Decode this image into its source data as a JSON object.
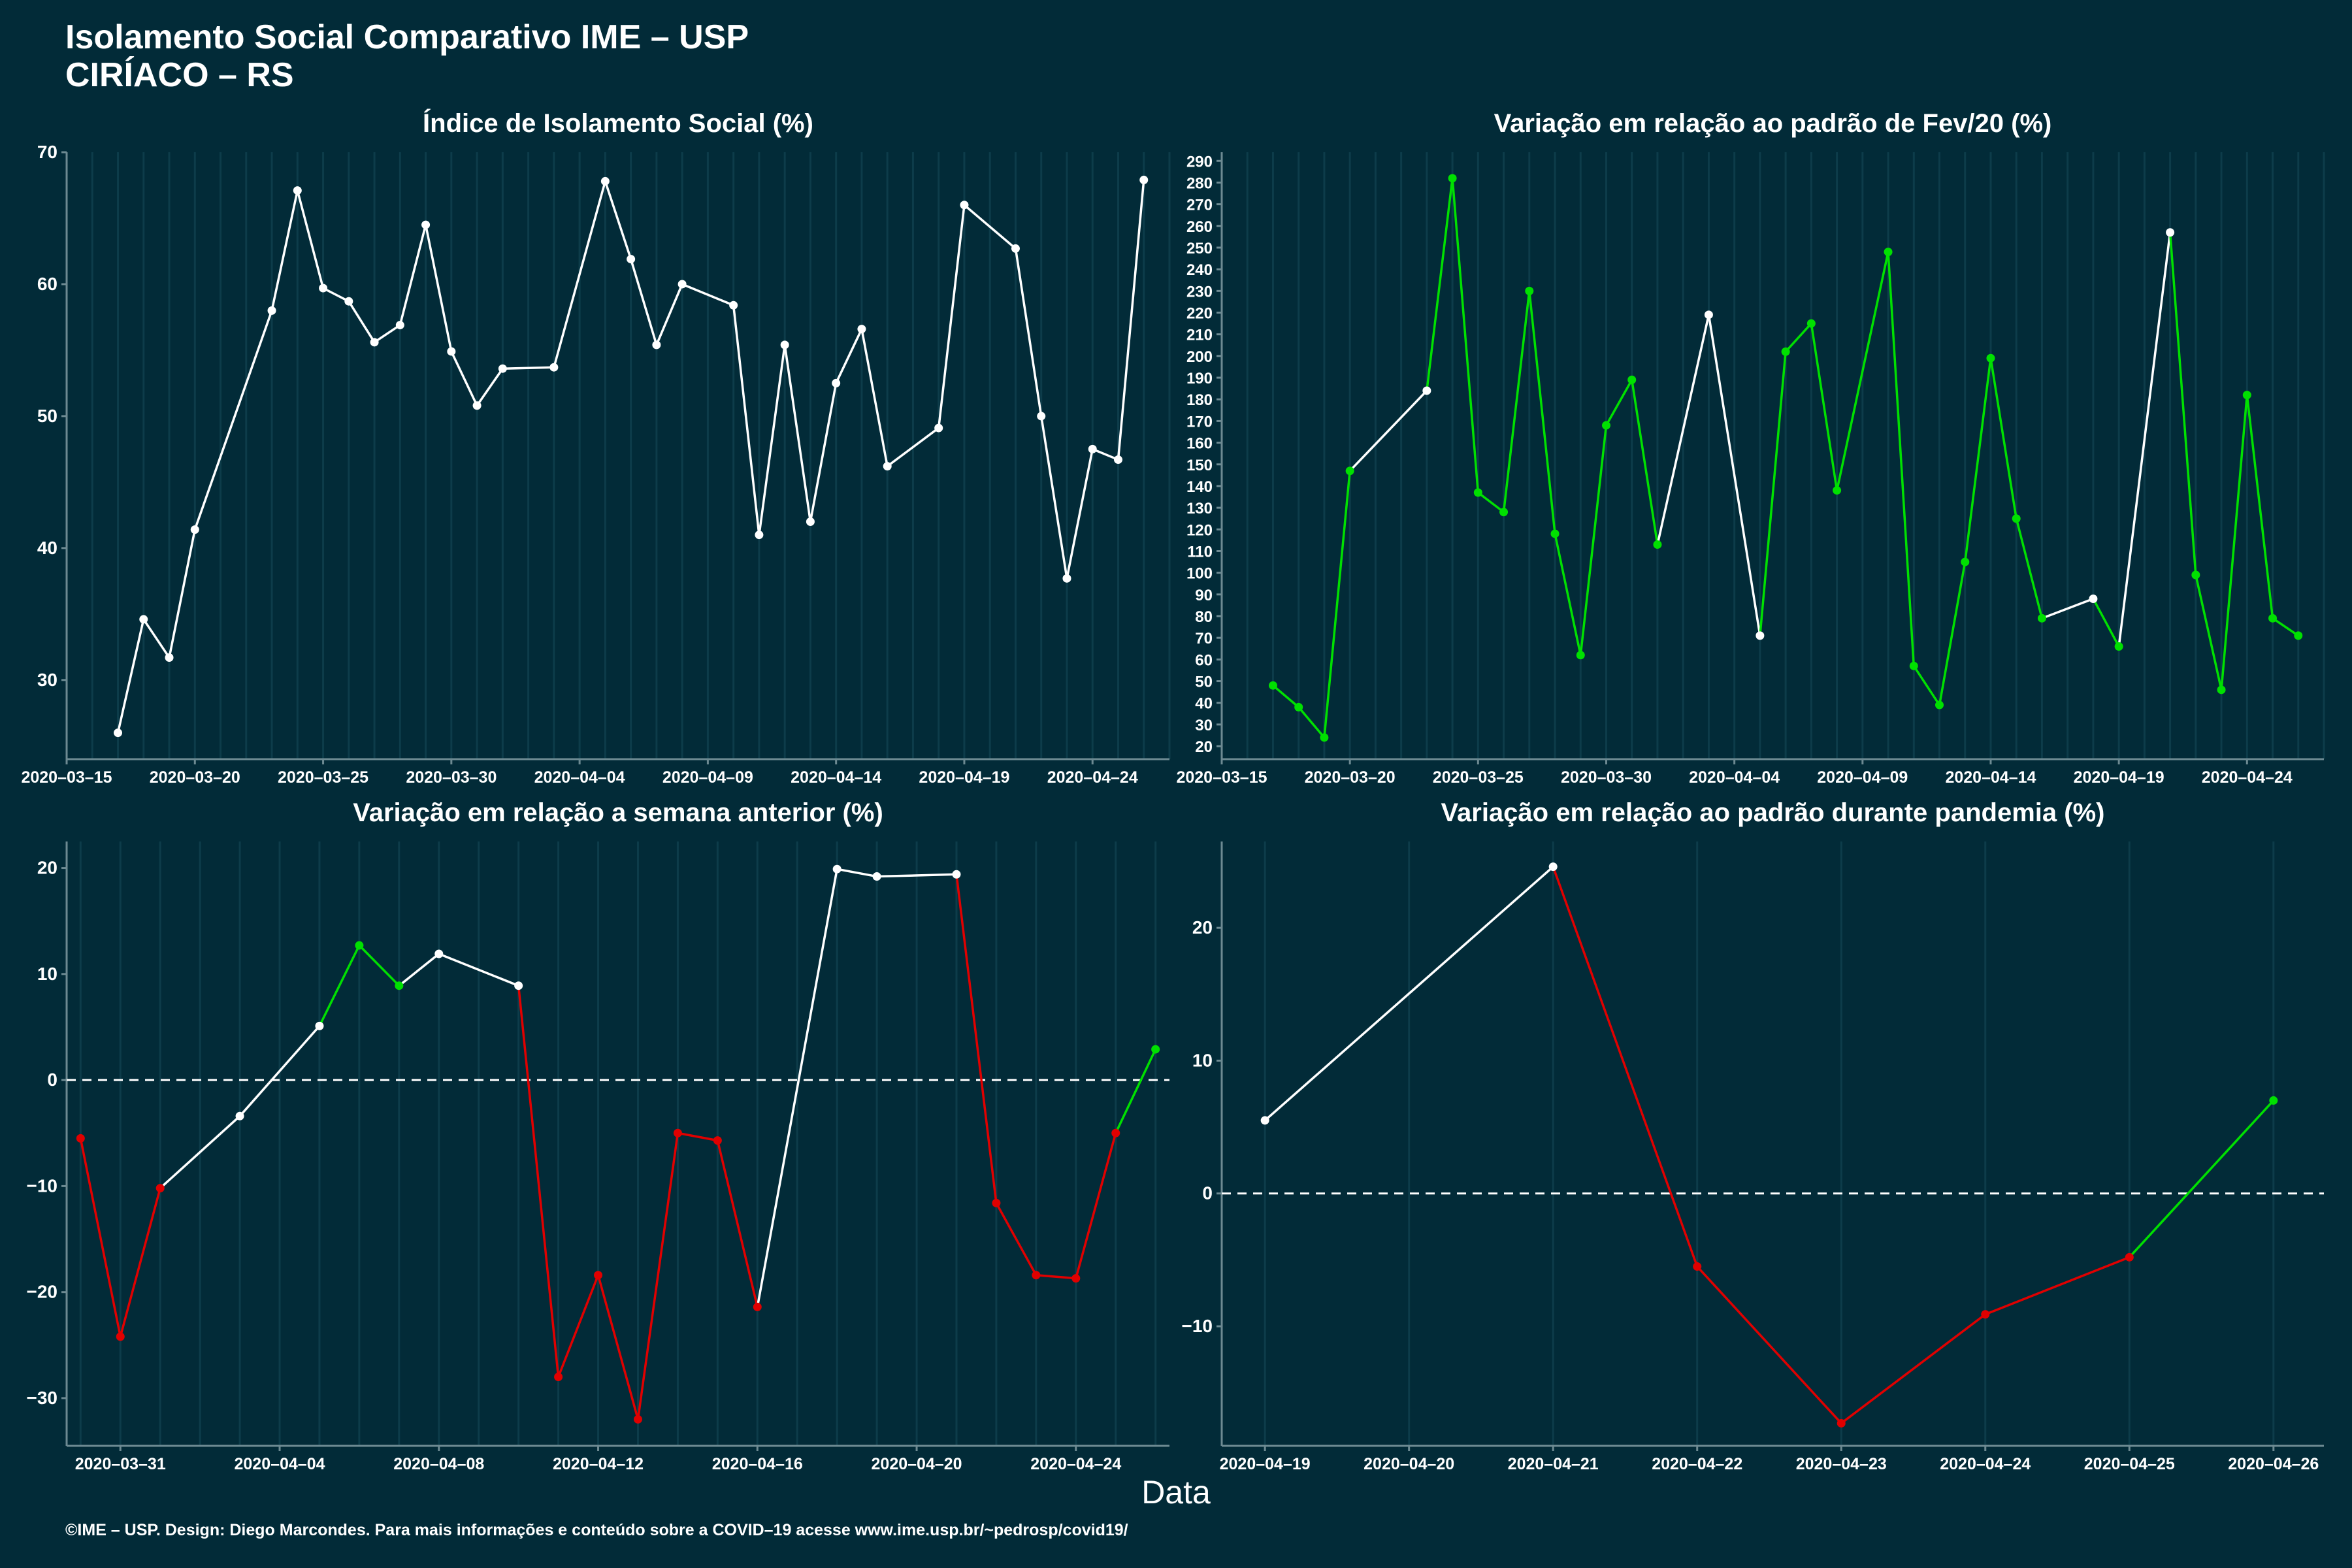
{
  "title_line1": "Isolamento Social Comparativo IME – USP",
  "title_line2": "CIRÍACO – RS",
  "x_axis_title": "Data",
  "footer": "©IME – USP. Design: Diego Marcondes. Para mais informações e conteúdo sobre a COVID–19 acesse www.ime.usp.br/~pedrosp/covid19/",
  "colors": {
    "background": "#022b38",
    "line": "#ffffff",
    "up": "#00e000",
    "down": "#e00000",
    "axis": "#6d8a92"
  },
  "chart_data": [
    {
      "type": "line",
      "title": "Índice de Isolamento Social (%)",
      "x": [
        "2020-03-17",
        "2020-03-18",
        "2020-03-19",
        "2020-03-20",
        "2020-03-23",
        "2020-03-24",
        "2020-03-25",
        "2020-03-26",
        "2020-03-27",
        "2020-03-28",
        "2020-03-29",
        "2020-03-30",
        "2020-03-31",
        "2020-04-01",
        "2020-04-03",
        "2020-04-05",
        "2020-04-06",
        "2020-04-07",
        "2020-04-08",
        "2020-04-10",
        "2020-04-11",
        "2020-04-12",
        "2020-04-13",
        "2020-04-14",
        "2020-04-15",
        "2020-04-16",
        "2020-04-18",
        "2020-04-19",
        "2020-04-21",
        "2020-04-22",
        "2020-04-23",
        "2020-04-24",
        "2020-04-25",
        "2020-04-26"
      ],
      "y": [
        26.0,
        34.6,
        31.7,
        41.4,
        58.0,
        67.1,
        59.7,
        58.7,
        55.6,
        56.9,
        64.5,
        54.9,
        50.8,
        53.6,
        53.7,
        67.8,
        61.9,
        55.4,
        60.0,
        58.4,
        41.0,
        55.4,
        42.0,
        52.5,
        56.6,
        46.2,
        49.1,
        66.0,
        62.7,
        50.0,
        37.7,
        47.5,
        46.7,
        67.9
      ],
      "colors": [
        "w",
        "w",
        "w",
        "w",
        "w",
        "w",
        "w",
        "w",
        "w",
        "w",
        "w",
        "w",
        "w",
        "w",
        "w",
        "w",
        "w",
        "w",
        "w",
        "w",
        "w",
        "w",
        "w",
        "w",
        "w",
        "w",
        "w",
        "w",
        "w",
        "w",
        "w",
        "w",
        "w"
      ],
      "ylim": [
        24,
        70
      ],
      "yticks": [
        30,
        40,
        50,
        60,
        70
      ],
      "xlim": [
        "2020-03-15",
        "2020-04-27"
      ],
      "xticks": [
        "2020-03-15",
        "2020-03-20",
        "2020-03-25",
        "2020-03-30",
        "2020-04-04",
        "2020-04-09",
        "2020-04-14",
        "2020-04-19",
        "2020-04-24"
      ],
      "zero_line": false
    },
    {
      "type": "line",
      "title": "Variação em relação ao padrão de Fev/20 (%)",
      "x": [
        "2020-03-17",
        "2020-03-18",
        "2020-03-19",
        "2020-03-20",
        "2020-03-23",
        "2020-03-24",
        "2020-03-25",
        "2020-03-26",
        "2020-03-27",
        "2020-03-28",
        "2020-03-29",
        "2020-03-30",
        "2020-03-31",
        "2020-04-01",
        "2020-04-03",
        "2020-04-05",
        "2020-04-06",
        "2020-04-07",
        "2020-04-08",
        "2020-04-10",
        "2020-04-11",
        "2020-04-12",
        "2020-04-13",
        "2020-04-14",
        "2020-04-15",
        "2020-04-16",
        "2020-04-18",
        "2020-04-19",
        "2020-04-21",
        "2020-04-22",
        "2020-04-23",
        "2020-04-24",
        "2020-04-25",
        "2020-04-26"
      ],
      "y": [
        48,
        38,
        24,
        147,
        184,
        282,
        137,
        128,
        230,
        118,
        62,
        168,
        189,
        113,
        219,
        71,
        202,
        215,
        138,
        248,
        57,
        39,
        105,
        199,
        125,
        79,
        88,
        66,
        257,
        99,
        46,
        182,
        79,
        71
      ],
      "colors": [
        "g",
        "g",
        "g",
        "w",
        "g",
        "g",
        "g",
        "g",
        "g",
        "g",
        "g",
        "g",
        "g",
        "w",
        "w",
        "g",
        "g",
        "g",
        "g",
        "g",
        "g",
        "g",
        "g",
        "g",
        "g",
        "w",
        "g",
        "w",
        "g",
        "g",
        "g",
        "g",
        "g"
      ],
      "ylim": [
        14,
        294
      ],
      "yticks": [
        20,
        30,
        40,
        50,
        60,
        70,
        80,
        90,
        100,
        110,
        120,
        130,
        140,
        150,
        160,
        170,
        180,
        190,
        200,
        210,
        220,
        230,
        240,
        250,
        260,
        270,
        280,
        290
      ],
      "xlim": [
        "2020-03-15",
        "2020-04-27"
      ],
      "xticks": [
        "2020-03-15",
        "2020-03-20",
        "2020-03-25",
        "2020-03-30",
        "2020-04-04",
        "2020-04-09",
        "2020-04-14",
        "2020-04-19",
        "2020-04-24"
      ],
      "zero_line": false
    },
    {
      "type": "line",
      "title": "Variação em relação a semana anterior (%)",
      "x": [
        "2020-03-30",
        "2020-03-31",
        "2020-04-01",
        "2020-04-03",
        "2020-04-05",
        "2020-04-06",
        "2020-04-07",
        "2020-04-08",
        "2020-04-10",
        "2020-04-11",
        "2020-04-12",
        "2020-04-13",
        "2020-04-14",
        "2020-04-15",
        "2020-04-16",
        "2020-04-18",
        "2020-04-19",
        "2020-04-21",
        "2020-04-22",
        "2020-04-23",
        "2020-04-24",
        "2020-04-25",
        "2020-04-26"
      ],
      "y": [
        -5.5,
        -24.2,
        -10.2,
        -3.4,
        5.1,
        12.7,
        8.9,
        11.9,
        8.9,
        -28.0,
        -18.4,
        -32.0,
        -5.0,
        -5.7,
        -21.4,
        19.9,
        19.2,
        19.4,
        -11.6,
        -18.4,
        -18.7,
        -5.0,
        2.9
      ],
      "colors": [
        "r",
        "r",
        "w",
        "w",
        "g",
        "g",
        "w",
        "w",
        "r",
        "r",
        "r",
        "r",
        "r",
        "r",
        "w",
        "w",
        "w",
        "r",
        "r",
        "r",
        "r",
        "g"
      ],
      "ylim": [
        -34.5,
        22.5
      ],
      "yticks": [
        -30,
        -20,
        -10,
        0,
        10,
        20
      ],
      "xlim": [
        "2020-03-29.65",
        "2020-04-26.35"
      ],
      "xticks": [
        "2020-03-31",
        "2020-04-04",
        "2020-04-08",
        "2020-04-12",
        "2020-04-16",
        "2020-04-20",
        "2020-04-24"
      ],
      "zero_line": true
    },
    {
      "type": "line",
      "title": "Variação em relação ao padrão durante pandemia (%)",
      "x": [
        "2020-04-19",
        "2020-04-21",
        "2020-04-22",
        "2020-04-23",
        "2020-04-24",
        "2020-04-25",
        "2020-04-26"
      ],
      "y": [
        5.5,
        24.6,
        -5.5,
        -17.3,
        -9.1,
        -4.8,
        7.0
      ],
      "colors": [
        "w",
        "r",
        "r",
        "r",
        "r",
        "g"
      ],
      "ylim": [
        -19.0,
        26.5
      ],
      "yticks": [
        -10,
        0,
        10,
        20
      ],
      "xlim": [
        "2020-04-18.7",
        "2020-04-26.35"
      ],
      "xticks": [
        "2020-04-19",
        "2020-04-20",
        "2020-04-21",
        "2020-04-22",
        "2020-04-23",
        "2020-04-24",
        "2020-04-25",
        "2020-04-26"
      ],
      "zero_line": true
    }
  ]
}
